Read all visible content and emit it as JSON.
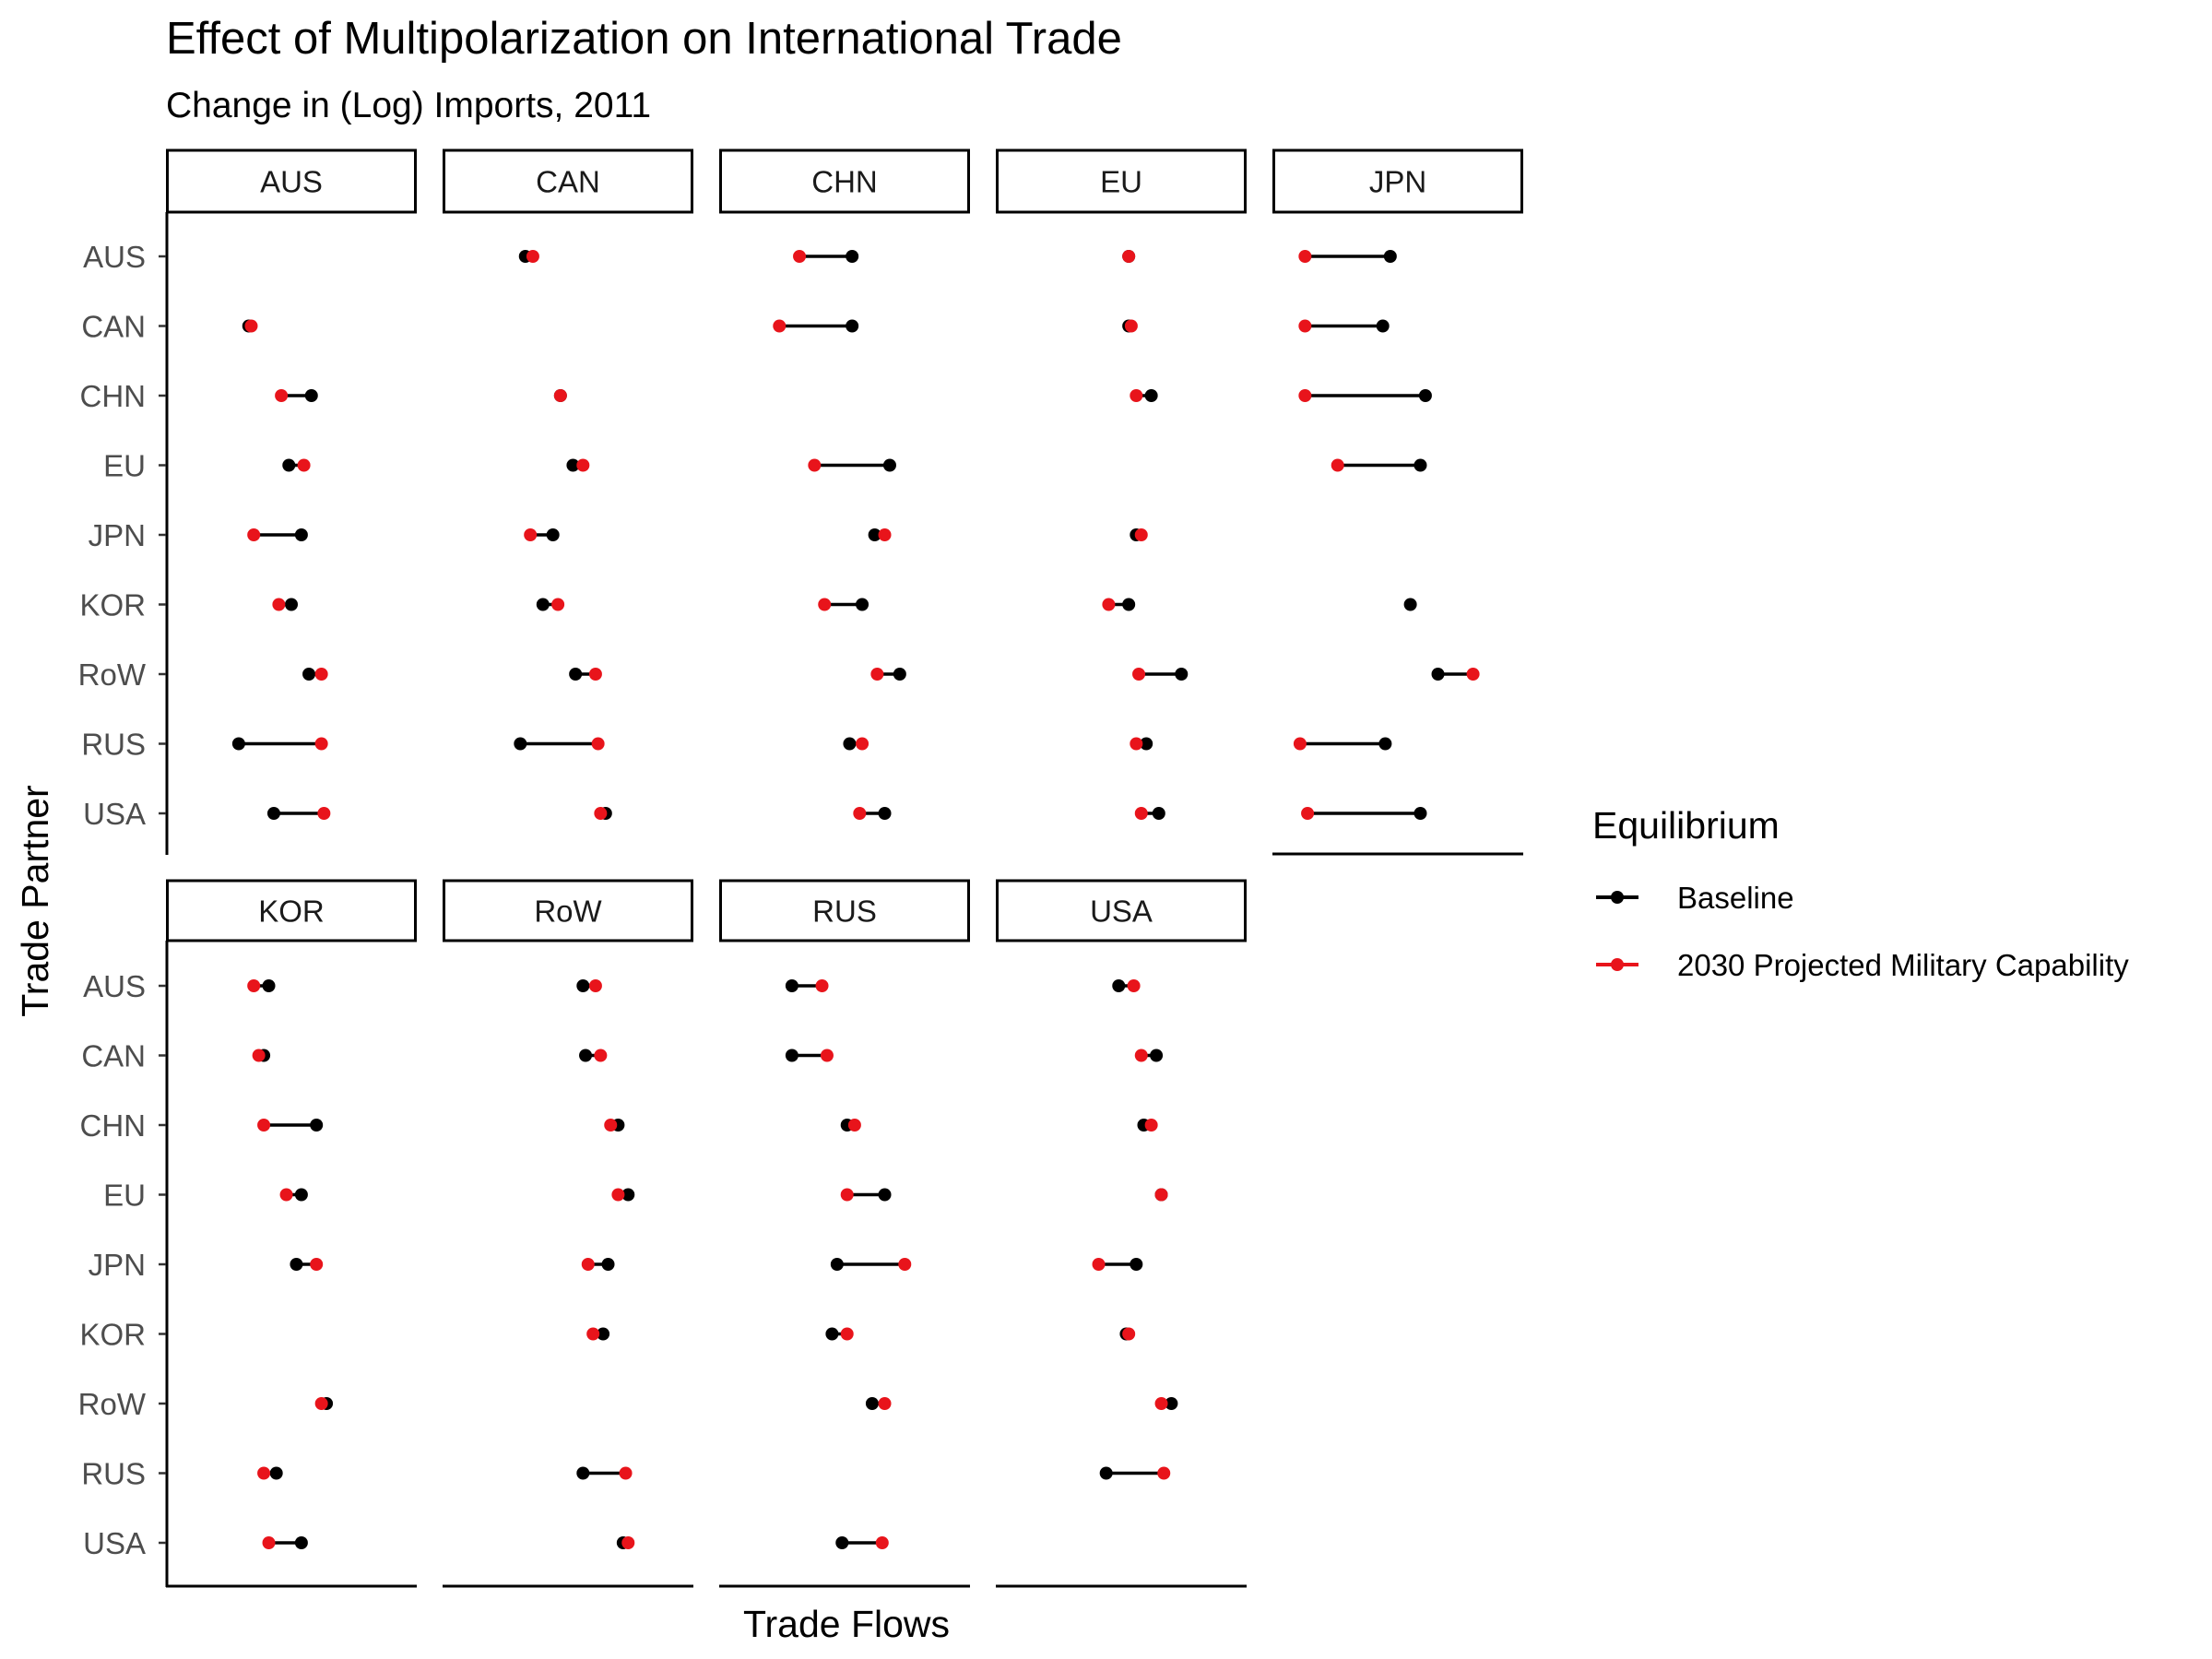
{
  "chart_data": {
    "type": "dumbbell",
    "title": "Effect of Multipolarization on International Trade",
    "subtitle": "Change in (Log) Imports, 2011",
    "xlabel": "Trade Flows",
    "ylabel": "Trade Partner",
    "legend": {
      "title": "Equilibrium",
      "position": "right",
      "entries": [
        {
          "label": "Baseline",
          "color": "#000000"
        },
        {
          "label": "2030 Projected Military Capability",
          "color": "#e8141b"
        }
      ]
    },
    "grid": false,
    "x_axis_ticks_shown": false,
    "note": "",
    "partners": [
      "AUS",
      "CAN",
      "CHN",
      "EU",
      "JPN",
      "KOR",
      "RoW",
      "RUS",
      "USA"
    ],
    "xlim": [
      0,
      1
    ],
    "panels": [
      {
        "importer": "AUS",
        "rows": [
          {
            "partner": "CAN",
            "baseline": 0.33,
            "projected": 0.34
          },
          {
            "partner": "CHN",
            "baseline": 0.58,
            "projected": 0.46
          },
          {
            "partner": "EU",
            "baseline": 0.49,
            "projected": 0.55
          },
          {
            "partner": "JPN",
            "baseline": 0.54,
            "projected": 0.35
          },
          {
            "partner": "KOR",
            "baseline": 0.5,
            "projected": 0.45
          },
          {
            "partner": "RoW",
            "baseline": 0.57,
            "projected": 0.62
          },
          {
            "partner": "RUS",
            "baseline": 0.29,
            "projected": 0.62
          },
          {
            "partner": "USA",
            "baseline": 0.43,
            "projected": 0.63
          }
        ]
      },
      {
        "importer": "CAN",
        "rows": [
          {
            "partner": "AUS",
            "baseline": 0.33,
            "projected": 0.36
          },
          {
            "partner": "CHN",
            "baseline": 0.47,
            "projected": 0.47
          },
          {
            "partner": "EU",
            "baseline": 0.52,
            "projected": 0.56
          },
          {
            "partner": "JPN",
            "baseline": 0.44,
            "projected": 0.35
          },
          {
            "partner": "KOR",
            "baseline": 0.4,
            "projected": 0.46
          },
          {
            "partner": "RoW",
            "baseline": 0.53,
            "projected": 0.61
          },
          {
            "partner": "RUS",
            "baseline": 0.31,
            "projected": 0.62
          },
          {
            "partner": "USA",
            "baseline": 0.65,
            "projected": 0.63
          }
        ]
      },
      {
        "importer": "CHN",
        "rows": [
          {
            "partner": "AUS",
            "baseline": 0.53,
            "projected": 0.32
          },
          {
            "partner": "CAN",
            "baseline": 0.53,
            "projected": 0.24
          },
          {
            "partner": "EU",
            "baseline": 0.68,
            "projected": 0.38
          },
          {
            "partner": "JPN",
            "baseline": 0.62,
            "projected": 0.66
          },
          {
            "partner": "KOR",
            "baseline": 0.57,
            "projected": 0.42
          },
          {
            "partner": "RoW",
            "baseline": 0.72,
            "projected": 0.63
          },
          {
            "partner": "RUS",
            "baseline": 0.52,
            "projected": 0.57
          },
          {
            "partner": "USA",
            "baseline": 0.66,
            "projected": 0.56
          }
        ]
      },
      {
        "importer": "EU",
        "rows": [
          {
            "partner": "AUS",
            "baseline": 0.53,
            "projected": 0.53
          },
          {
            "partner": "CAN",
            "baseline": 0.53,
            "projected": 0.54
          },
          {
            "partner": "CHN",
            "baseline": 0.62,
            "projected": 0.56
          },
          {
            "partner": "JPN",
            "baseline": 0.56,
            "projected": 0.58
          },
          {
            "partner": "KOR",
            "baseline": 0.53,
            "projected": 0.45
          },
          {
            "partner": "RoW",
            "baseline": 0.74,
            "projected": 0.57
          },
          {
            "partner": "RUS",
            "baseline": 0.6,
            "projected": 0.56
          },
          {
            "partner": "USA",
            "baseline": 0.65,
            "projected": 0.58
          }
        ]
      },
      {
        "importer": "JPN",
        "rows": [
          {
            "partner": "AUS",
            "baseline": 0.47,
            "projected": 0.13
          },
          {
            "partner": "CAN",
            "baseline": 0.44,
            "projected": 0.13
          },
          {
            "partner": "CHN",
            "baseline": 0.61,
            "projected": 0.13
          },
          {
            "partner": "EU",
            "baseline": 0.59,
            "projected": 0.26
          },
          {
            "partner": "KOR",
            "baseline": 0.55,
            "projected": null
          },
          {
            "partner": "RoW",
            "baseline": 0.66,
            "projected": 0.8
          },
          {
            "partner": "RUS",
            "baseline": 0.45,
            "projected": 0.11
          },
          {
            "partner": "USA",
            "baseline": 0.59,
            "projected": 0.14
          }
        ]
      },
      {
        "importer": "KOR",
        "rows": [
          {
            "partner": "AUS",
            "baseline": 0.41,
            "projected": 0.35
          },
          {
            "partner": "CAN",
            "baseline": 0.39,
            "projected": 0.37
          },
          {
            "partner": "CHN",
            "baseline": 0.6,
            "projected": 0.39
          },
          {
            "partner": "EU",
            "baseline": 0.54,
            "projected": 0.48
          },
          {
            "partner": "JPN",
            "baseline": 0.52,
            "projected": 0.6
          },
          {
            "partner": "RoW",
            "baseline": 0.64,
            "projected": 0.62
          },
          {
            "partner": "RUS",
            "baseline": 0.44,
            "projected": 0.39
          },
          {
            "partner": "USA",
            "baseline": 0.54,
            "projected": 0.41
          }
        ]
      },
      {
        "importer": "RoW",
        "rows": [
          {
            "partner": "AUS",
            "baseline": 0.56,
            "projected": 0.61
          },
          {
            "partner": "CAN",
            "baseline": 0.57,
            "projected": 0.63
          },
          {
            "partner": "CHN",
            "baseline": 0.7,
            "projected": 0.67
          },
          {
            "partner": "EU",
            "baseline": 0.74,
            "projected": 0.7
          },
          {
            "partner": "JPN",
            "baseline": 0.66,
            "projected": 0.58
          },
          {
            "partner": "KOR",
            "baseline": 0.64,
            "projected": 0.6
          },
          {
            "partner": "RUS",
            "baseline": 0.56,
            "projected": 0.73
          },
          {
            "partner": "USA",
            "baseline": 0.72,
            "projected": 0.74
          }
        ]
      },
      {
        "importer": "RUS",
        "rows": [
          {
            "partner": "AUS",
            "baseline": 0.29,
            "projected": 0.41
          },
          {
            "partner": "CAN",
            "baseline": 0.29,
            "projected": 0.43
          },
          {
            "partner": "CHN",
            "baseline": 0.51,
            "projected": 0.54
          },
          {
            "partner": "EU",
            "baseline": 0.66,
            "projected": 0.51
          },
          {
            "partner": "JPN",
            "baseline": 0.47,
            "projected": 0.74
          },
          {
            "partner": "KOR",
            "baseline": 0.45,
            "projected": 0.51
          },
          {
            "partner": "RoW",
            "baseline": 0.61,
            "projected": 0.66
          },
          {
            "partner": "USA",
            "baseline": 0.49,
            "projected": 0.65
          }
        ]
      },
      {
        "importer": "USA",
        "rows": [
          {
            "partner": "AUS",
            "baseline": 0.49,
            "projected": 0.55
          },
          {
            "partner": "CAN",
            "baseline": 0.64,
            "projected": 0.58
          },
          {
            "partner": "CHN",
            "baseline": 0.59,
            "projected": 0.62
          },
          {
            "partner": "EU",
            "baseline": 0.66,
            "projected": 0.66
          },
          {
            "partner": "JPN",
            "baseline": 0.56,
            "projected": 0.41
          },
          {
            "partner": "KOR",
            "baseline": 0.52,
            "projected": 0.53
          },
          {
            "partner": "RoW",
            "baseline": 0.7,
            "projected": 0.66
          },
          {
            "partner": "RUS",
            "baseline": 0.44,
            "projected": 0.67
          }
        ]
      }
    ]
  }
}
